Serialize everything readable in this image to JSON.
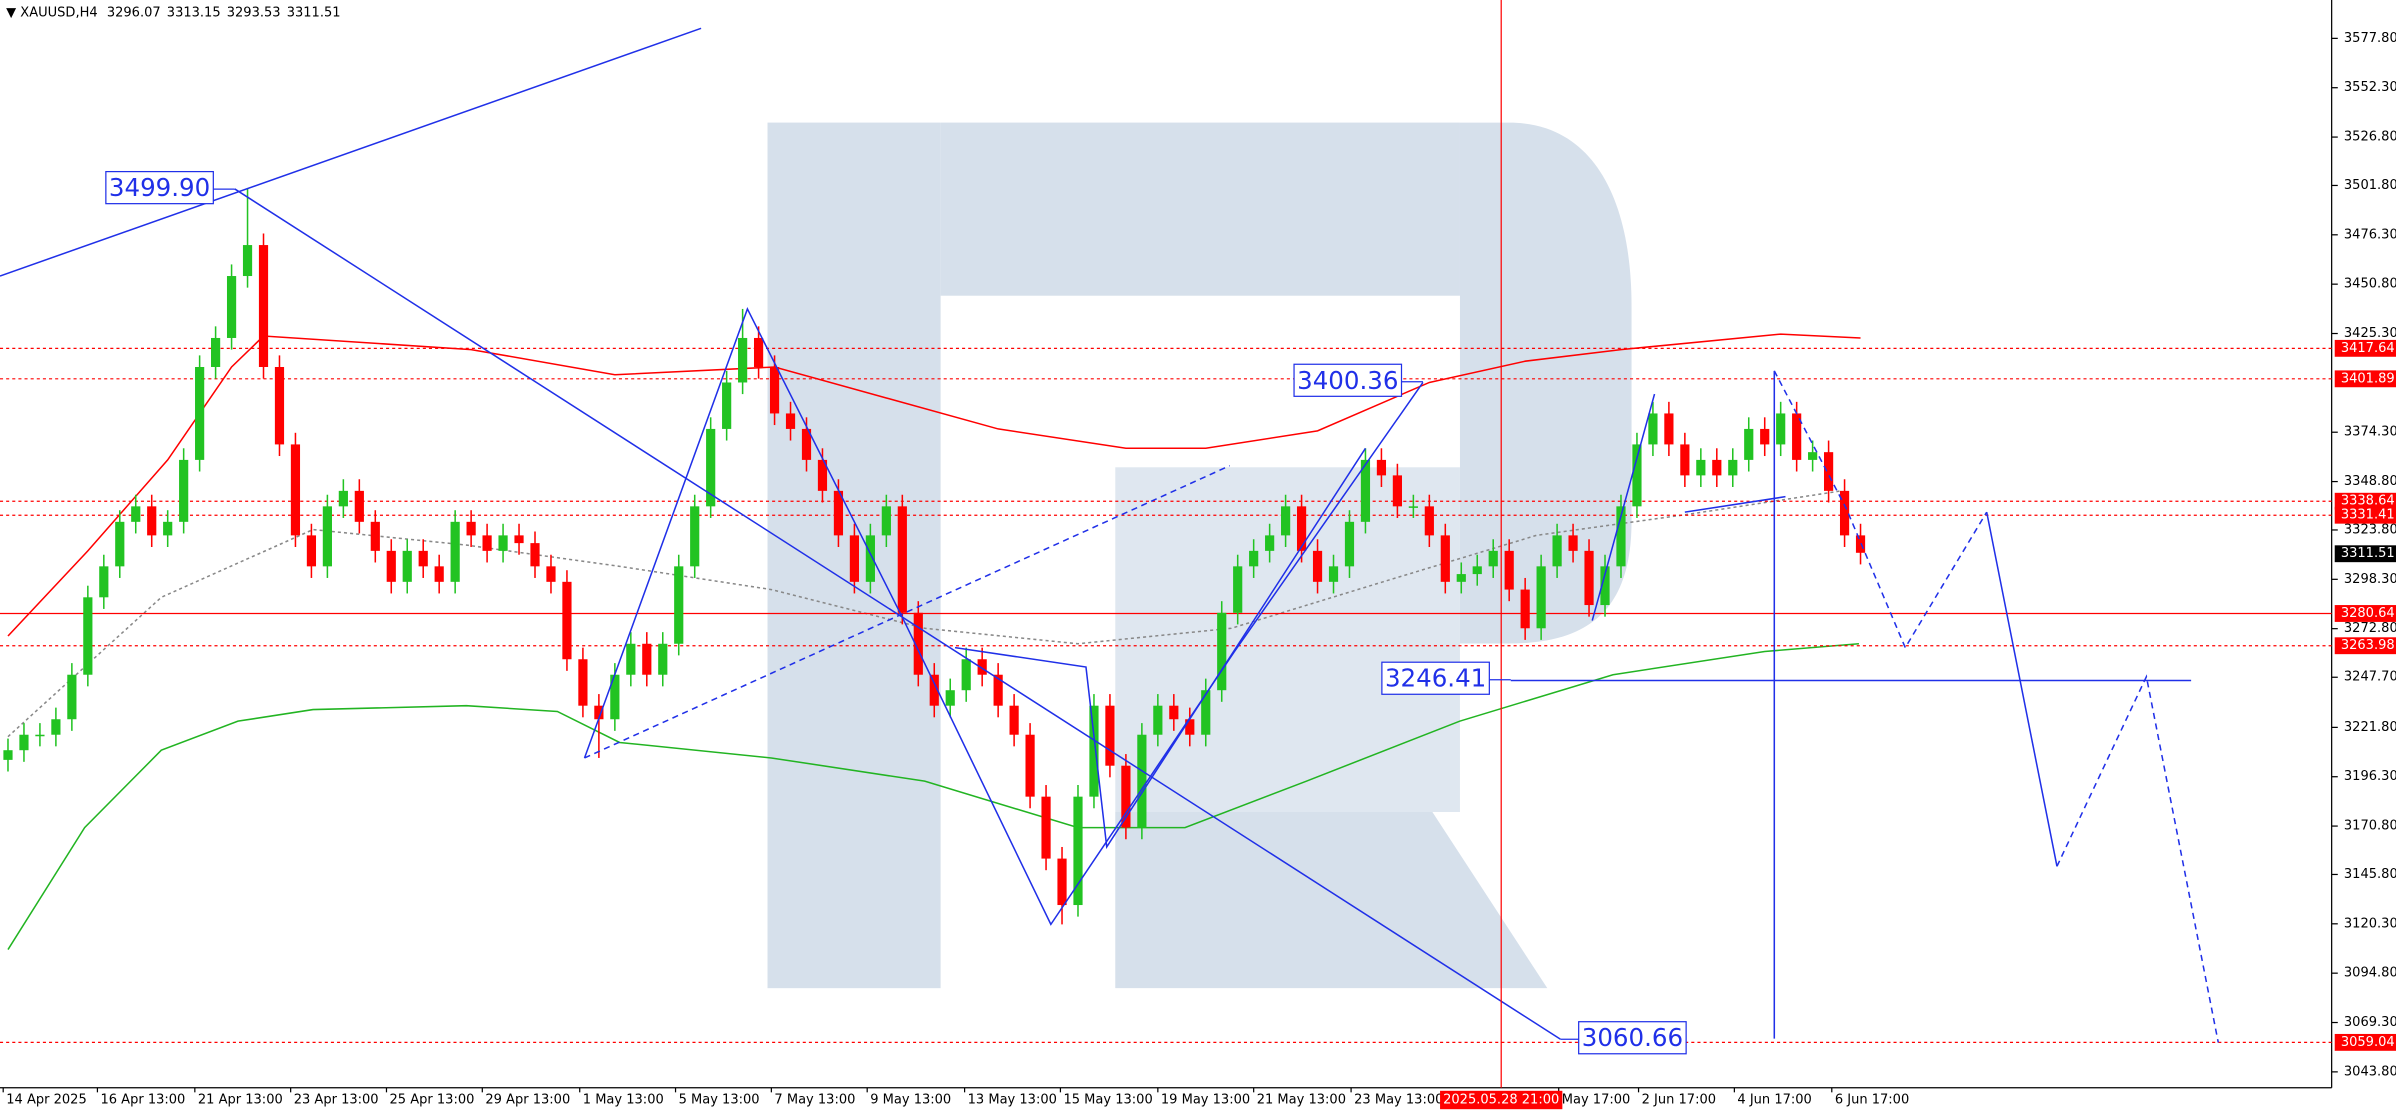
{
  "chart_data": {
    "type": "candlestick",
    "symbol": "XAUUSD,H4",
    "ohlc": [
      3296.07,
      3313.15,
      3293.53,
      3311.51
    ],
    "up_color": "#22c322",
    "down_color": "#ff0000",
    "open": [
      3205,
      3210,
      3218,
      3218,
      3226,
      3249,
      3289,
      3305,
      3328,
      3336,
      3321,
      3328,
      3360,
      3408,
      3423,
      3455,
      3471,
      3408,
      3368,
      3321,
      3305,
      3336,
      3344,
      3328,
      3313,
      3297,
      3313,
      3305,
      3297,
      3328,
      3321,
      3313,
      3321,
      3317,
      3305,
      3297,
      3257,
      3233,
      3226,
      3249,
      3265,
      3249,
      3265,
      3305,
      3336,
      3376,
      3400,
      3423,
      3408,
      3384,
      3376,
      3360,
      3344,
      3321,
      3297,
      3321,
      3336,
      3281,
      3249,
      3233,
      3241,
      3257,
      3249,
      3233,
      3218,
      3186,
      3154,
      3130,
      3186,
      3233,
      3202,
      3170,
      3218,
      3233,
      3226,
      3218,
      3241,
      3281,
      3305,
      3313,
      3321,
      3336,
      3313,
      3297,
      3305,
      3328,
      3360,
      3352,
      3336,
      3336,
      3321,
      3297,
      3301,
      3305,
      3313,
      3293,
      3273,
      3305,
      3321,
      3313,
      3285,
      3305,
      3336,
      3368,
      3384,
      3368,
      3352,
      3360,
      3352,
      3360,
      3376,
      3368,
      3384,
      3360,
      3364,
      3344,
      3321
    ],
    "high": [
      3216,
      3224,
      3224,
      3232,
      3255,
      3295,
      3311,
      3334,
      3342,
      3342,
      3334,
      3366,
      3414,
      3429,
      3461,
      3500,
      3477,
      3414,
      3374,
      3327,
      3342,
      3350,
      3350,
      3334,
      3319,
      3319,
      3319,
      3311,
      3334,
      3334,
      3327,
      3327,
      3327,
      3323,
      3311,
      3303,
      3263,
      3239,
      3255,
      3271,
      3271,
      3271,
      3311,
      3342,
      3382,
      3406,
      3438,
      3429,
      3414,
      3390,
      3382,
      3366,
      3350,
      3327,
      3327,
      3342,
      3342,
      3287,
      3255,
      3247,
      3263,
      3263,
      3255,
      3239,
      3224,
      3192,
      3160,
      3192,
      3239,
      3239,
      3208,
      3224,
      3239,
      3239,
      3232,
      3247,
      3287,
      3311,
      3319,
      3327,
      3342,
      3342,
      3319,
      3311,
      3334,
      3366,
      3366,
      3358,
      3342,
      3342,
      3327,
      3307,
      3311,
      3319,
      3319,
      3299,
      3311,
      3327,
      3327,
      3319,
      3311,
      3342,
      3374,
      3390,
      3390,
      3374,
      3366,
      3366,
      3366,
      3382,
      3382,
      3390,
      3390,
      3370,
      3370,
      3350,
      3327
    ],
    "low": [
      3199,
      3204,
      3212,
      3212,
      3220,
      3243,
      3283,
      3299,
      3322,
      3315,
      3315,
      3322,
      3354,
      3402,
      3417,
      3449,
      3402,
      3362,
      3315,
      3299,
      3299,
      3330,
      3322,
      3307,
      3291,
      3291,
      3299,
      3291,
      3291,
      3315,
      3307,
      3307,
      3311,
      3299,
      3291,
      3251,
      3227,
      3206,
      3220,
      3243,
      3243,
      3243,
      3259,
      3299,
      3330,
      3370,
      3394,
      3402,
      3378,
      3370,
      3354,
      3338,
      3315,
      3291,
      3291,
      3315,
      3275,
      3243,
      3227,
      3227,
      3235,
      3243,
      3227,
      3212,
      3180,
      3148,
      3120,
      3124,
      3180,
      3196,
      3164,
      3164,
      3212,
      3220,
      3212,
      3212,
      3235,
      3275,
      3299,
      3307,
      3315,
      3307,
      3291,
      3291,
      3299,
      3322,
      3346,
      3330,
      3330,
      3315,
      3291,
      3291,
      3295,
      3299,
      3287,
      3267,
      3267,
      3299,
      3307,
      3279,
      3279,
      3299,
      3330,
      3362,
      3362,
      3346,
      3346,
      3346,
      3346,
      3354,
      3362,
      3362,
      3354,
      3354,
      3338,
      3315,
      3306
    ],
    "close": [
      3210,
      3218,
      3218,
      3226,
      3249,
      3289,
      3305,
      3328,
      3336,
      3321,
      3328,
      3360,
      3408,
      3423,
      3455,
      3471,
      3408,
      3368,
      3321,
      3305,
      3336,
      3344,
      3328,
      3313,
      3297,
      3313,
      3305,
      3297,
      3328,
      3321,
      3313,
      3321,
      3317,
      3305,
      3297,
      3257,
      3233,
      3226,
      3249,
      3265,
      3249,
      3265,
      3305,
      3336,
      3376,
      3400,
      3423,
      3408,
      3384,
      3376,
      3360,
      3344,
      3321,
      3297,
      3321,
      3336,
      3281,
      3249,
      3233,
      3241,
      3257,
      3249,
      3233,
      3218,
      3186,
      3154,
      3130,
      3186,
      3233,
      3202,
      3170,
      3218,
      3233,
      3226,
      3218,
      3241,
      3281,
      3305,
      3313,
      3321,
      3336,
      3313,
      3297,
      3305,
      3328,
      3360,
      3352,
      3336,
      3336,
      3321,
      3297,
      3301,
      3305,
      3313,
      3293,
      3273,
      3305,
      3321,
      3313,
      3285,
      3305,
      3336,
      3368,
      3384,
      3368,
      3352,
      3360,
      3352,
      3360,
      3376,
      3368,
      3384,
      3360,
      3364,
      3344,
      3321,
      3312
    ],
    "xlim": [
      -0.5,
      145.5
    ],
    "ylim": [
      3035.6,
      3597.6
    ],
    "grid": false,
    "yticks": [
      {
        "value": 3577.8,
        "label": "3577.80"
      },
      {
        "value": 3552.3,
        "label": "3552.30"
      },
      {
        "value": 3526.8,
        "label": "3526.80"
      },
      {
        "value": 3501.8,
        "label": "3501.80"
      },
      {
        "value": 3476.3,
        "label": "3476.30"
      },
      {
        "value": 3450.8,
        "label": "3450.80"
      },
      {
        "value": 3425.3,
        "label": "3425.30"
      },
      {
        "value": 3374.3,
        "label": "3374.30"
      },
      {
        "value": 3348.8,
        "label": "3348.80"
      },
      {
        "value": 3323.8,
        "label": "3323.80"
      },
      {
        "value": 3298.3,
        "label": "3298.30"
      },
      {
        "value": 3272.8,
        "label": "3272.80"
      },
      {
        "value": 3247.7,
        "label": "3247.70"
      },
      {
        "value": 3221.8,
        "label": "3221.80"
      },
      {
        "value": 3196.3,
        "label": "3196.30"
      },
      {
        "value": 3170.8,
        "label": "3170.80"
      },
      {
        "value": 3145.8,
        "label": "3145.80"
      },
      {
        "value": 3120.3,
        "label": "3120.30"
      },
      {
        "value": 3094.8,
        "label": "3094.80"
      },
      {
        "value": 3069.3,
        "label": "3069.30"
      },
      {
        "value": 3043.8,
        "label": "3043.80"
      }
    ],
    "xticks": [
      {
        "value": -0.3,
        "label": "14 Apr 2025"
      },
      {
        "value": 5.6,
        "label": "16 Apr 13:00"
      },
      {
        "value": 11.7,
        "label": "21 Apr 13:00"
      },
      {
        "value": 17.7,
        "label": "23 Apr 13:00"
      },
      {
        "value": 23.7,
        "label": "25 Apr 13:00"
      },
      {
        "value": 29.7,
        "label": "29 Apr 13:00"
      },
      {
        "value": 35.8,
        "label": "1 May 13:00"
      },
      {
        "value": 41.8,
        "label": "5 May 13:00"
      },
      {
        "value": 47.8,
        "label": "7 May 13:00"
      },
      {
        "value": 53.8,
        "label": "9 May 13:00"
      },
      {
        "value": 59.9,
        "label": "13 May 13:00"
      },
      {
        "value": 65.9,
        "label": "15 May 13:00"
      },
      {
        "value": 72,
        "label": "19 May 13:00"
      },
      {
        "value": 78,
        "label": "21 May 13:00"
      },
      {
        "value": 84.1,
        "label": "23 May 13:00"
      },
      {
        "value": 97.1,
        "label": "May 17:00"
      },
      {
        "value": 102.1,
        "label": "2 Jun 17:00"
      },
      {
        "value": 108.1,
        "label": "4 Jun 17:00"
      },
      {
        "value": 114.2,
        "label": "6 Jun 17:00"
      }
    ],
    "vline": {
      "x": 93.5,
      "label": "2025.05.28 21:00",
      "color": "#ff0000"
    },
    "overlays": [
      {
        "color": "#ff0000",
        "style": "solid",
        "x": [
          0,
          5,
          10,
          14,
          16,
          29,
          38,
          48,
          55,
          62,
          70,
          75,
          82,
          89,
          95,
          101,
          111,
          116
        ],
        "values": [
          3269,
          3313,
          3360,
          3408,
          3424,
          3417,
          3404,
          3408,
          3392,
          3376,
          3366,
          3366,
          3375,
          3400,
          3411,
          3417,
          3425,
          3423
        ]
      },
      {
        "color": "#22b422",
        "style": "solid",
        "x": [
          0,
          4.8,
          9.6,
          14.4,
          19.1,
          28.7,
          34.4,
          38.3,
          47.8,
          57.4,
          67,
          73.7,
          81.3,
          90.9,
          100.5,
          110,
          115.9
        ],
        "values": [
          3107,
          3170,
          3210,
          3225,
          3231,
          3233,
          3230,
          3214,
          3206,
          3194,
          3170,
          3170,
          3194,
          3225,
          3249,
          3261,
          3265
        ]
      },
      {
        "color": "#888888",
        "style": "dotted",
        "x": [
          0,
          9.6,
          19.1,
          28.7,
          38.3,
          47.8,
          57.4,
          67,
          76.6,
          86.1,
          95.7,
          105.3,
          114.8
        ],
        "values": [
          3217,
          3289,
          3324,
          3316,
          3305,
          3293,
          3273,
          3265,
          3273,
          3297,
          3321,
          3332,
          3344
        ]
      }
    ],
    "drawing_color": "#2030e8",
    "drawings": [
      {
        "style": "solid",
        "x": [
          -0.5,
          43.4
        ],
        "values": [
          3455,
          3583
        ]
      },
      {
        "style": "solid",
        "x": [
          14.2,
          97.2
        ],
        "values": [
          3500,
          3060.7
        ]
      },
      {
        "style": "solid",
        "x": [
          36.1,
          46.3,
          56.1,
          65.3,
          76.8,
          88.6
        ],
        "values": [
          3206,
          3438,
          3277,
          3120,
          3261,
          3400
        ]
      },
      {
        "style": "solid",
        "x": [
          59.3,
          67.5,
          68.8,
          85
        ],
        "values": [
          3263,
          3253,
          3160,
          3366
        ]
      },
      {
        "style": "dashed",
        "x": [
          36.1,
          76.5
        ],
        "values": [
          3206,
          3357
        ]
      },
      {
        "style": "solid",
        "x": [
          94.1,
          136.7
        ],
        "values": [
          3246,
          3246
        ]
      },
      {
        "style": "solid",
        "x": [
          99.2,
          103.1
        ],
        "values": [
          3277,
          3394
        ]
      },
      {
        "style": "solid",
        "x": [
          105,
          111.3
        ],
        "values": [
          3333,
          3341
        ]
      },
      {
        "style": "solid",
        "x": [
          110.6,
          110.6
        ],
        "values": [
          3406,
          3061
        ]
      },
      {
        "style": "dashed",
        "x": [
          110.6,
          115.1,
          118.8,
          123.9
        ],
        "values": [
          3406,
          3335,
          3263,
          3333
        ]
      },
      {
        "style": "solid",
        "x": [
          123.9,
          128.3
        ],
        "values": [
          3333,
          3150
        ]
      },
      {
        "style": "dashed",
        "x": [
          128.3,
          133.9,
          138.4
        ],
        "values": [
          3150,
          3248,
          3059
        ]
      }
    ],
    "annotations": [
      {
        "x": 14.2,
        "value": 3499.9,
        "label": "3499.90",
        "side": "left"
      },
      {
        "x": 88.6,
        "value": 3400.36,
        "label": "3400.36",
        "side": "left"
      },
      {
        "x": 94.1,
        "value": 3246.41,
        "label": "3246.41",
        "side": "left"
      },
      {
        "x": 97.2,
        "value": 3060.66,
        "label": "3060.66",
        "side": "right"
      }
    ],
    "levels": [
      {
        "value": 3417.64,
        "color": "#ff0000",
        "line": "dotted"
      },
      {
        "value": 3401.89,
        "color": "#ff0000",
        "line": "dotted"
      },
      {
        "value": 3338.64,
        "color": "#ff0000",
        "line": "dotted"
      },
      {
        "value": 3331.41,
        "color": "#ff0000",
        "line": "dotted"
      },
      {
        "value": 3311.51,
        "color": "#000000",
        "line": "none"
      },
      {
        "value": 3280.64,
        "color": "#ff0000",
        "line": "solid"
      },
      {
        "value": 3263.98,
        "color": "#ff0000",
        "line": "dotted"
      },
      {
        "value": 3059.04,
        "color": "#ff0000",
        "line": "dotted"
      }
    ]
  }
}
